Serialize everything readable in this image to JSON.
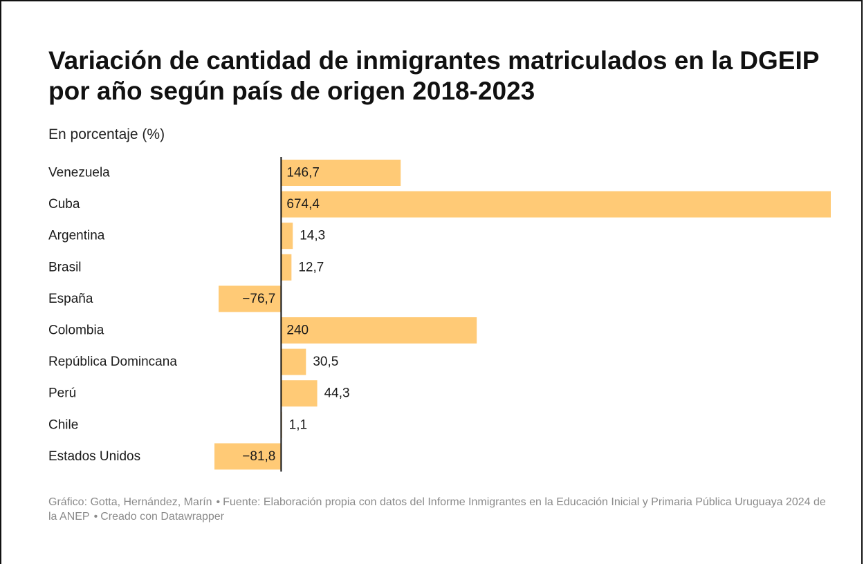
{
  "title": "Variación de cantidad de inmigrantes matriculados en la DGEIP por año según país de origen 2018-2023",
  "subtitle": "En porcentaje (%)",
  "footer": {
    "graphic": "Gráfico: Gotta, Hernández, Marín",
    "source": "Fuente: Elaboración propia con datos del Informe Inmigrantes en la Educación Inicial y Primaria Pública Uruguaya 2024 de la ANEP",
    "created": "Creado con Datawrapper"
  },
  "colors": {
    "bar": "#ffca76",
    "axis": "#111111",
    "text": "#1a1a1a"
  },
  "chart_data": {
    "type": "bar",
    "orientation": "horizontal",
    "categories": [
      "Venezuela",
      "Cuba",
      "Argentina",
      "Brasil",
      "España",
      "Colombia",
      "República Domincana",
      "Perú",
      "Chile",
      "Estados Unidos"
    ],
    "values": [
      146.7,
      674.4,
      14.3,
      12.7,
      -76.7,
      240,
      30.5,
      44.3,
      1.1,
      -81.8
    ],
    "labels": [
      "146,7",
      "674,4",
      "14,3",
      "12,7",
      "−76,7",
      "240",
      "30,5",
      "44,3",
      "1,1",
      "−81,8"
    ],
    "xlim": [
      -81.8,
      674.4
    ],
    "grid": false,
    "legend": "none"
  }
}
